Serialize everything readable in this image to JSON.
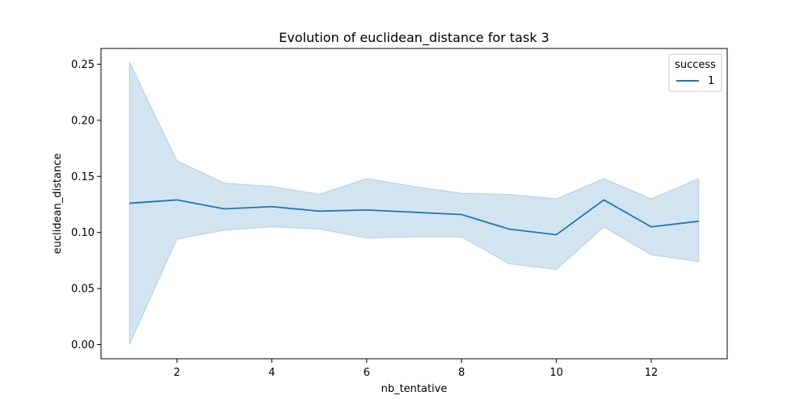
{
  "chart_data": {
    "type": "line",
    "title": "Evolution of euclidean_distance for task 3",
    "xlabel": "nb_tentative",
    "ylabel": "euclidean_distance",
    "xlim": [
      0.4,
      13.6
    ],
    "ylim": [
      -0.0126,
      0.264
    ],
    "xticks": [
      2,
      4,
      6,
      8,
      10,
      12
    ],
    "yticks": [
      0.0,
      0.05,
      0.1,
      0.15,
      0.2,
      0.25
    ],
    "xtick_labels": [
      "2",
      "4",
      "6",
      "8",
      "10",
      "12"
    ],
    "ytick_labels": [
      "0.00",
      "0.05",
      "0.10",
      "0.15",
      "0.20",
      "0.25"
    ],
    "grid": false,
    "legend": {
      "title": "success",
      "placement": "top-right",
      "entries": [
        {
          "label": "1",
          "color": "#1f77b4"
        }
      ]
    },
    "series": [
      {
        "name": "1",
        "color": "#1f77b4",
        "x": [
          1,
          2,
          3,
          4,
          5,
          6,
          7,
          8,
          9,
          10,
          11,
          12,
          13
        ],
        "y": [
          0.126,
          0.129,
          0.121,
          0.123,
          0.119,
          0.12,
          0.118,
          0.116,
          0.103,
          0.098,
          0.129,
          0.105,
          0.11
        ],
        "ci_lower": [
          0.0,
          0.094,
          0.102,
          0.105,
          0.103,
          0.095,
          0.096,
          0.096,
          0.072,
          0.067,
          0.105,
          0.08,
          0.074
        ],
        "ci_upper": [
          0.252,
          0.164,
          0.144,
          0.141,
          0.134,
          0.148,
          0.141,
          0.135,
          0.134,
          0.13,
          0.148,
          0.13,
          0.148
        ]
      }
    ]
  }
}
